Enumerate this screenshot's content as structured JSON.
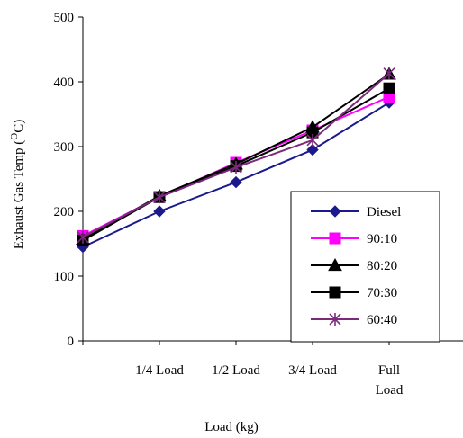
{
  "chart_data": {
    "type": "line",
    "title": "",
    "xlabel": "Load (kg)",
    "ylabel_main": "Exhaust Gas Temp (",
    "ylabel_sup": "O",
    "ylabel_end": "C)",
    "categories": [
      "",
      "1/4 Load",
      "1/2 Load",
      "3/4 Load",
      "Full Load"
    ],
    "ylim": [
      0,
      500
    ],
    "yticks": [
      0,
      100,
      200,
      300,
      400,
      500
    ],
    "grid": false,
    "legend_position": "bottom-right",
    "series": [
      {
        "name": "Diesel",
        "color": "#1a1a8c",
        "marker": "diamond",
        "values": [
          145,
          200,
          245,
          295,
          368
        ]
      },
      {
        "name": "90:10",
        "color": "#ff00ff",
        "marker": "square",
        "values": [
          162,
          222,
          275,
          325,
          377
        ]
      },
      {
        "name": "80:20",
        "color": "#000000",
        "marker": "triangle",
        "values": [
          157,
          224,
          273,
          330,
          412
        ]
      },
      {
        "name": "70:30",
        "color": "#000000",
        "marker": "square",
        "values": [
          155,
          222,
          270,
          322,
          390
        ]
      },
      {
        "name": "60:40",
        "color": "#7b2a7b",
        "marker": "star",
        "values": [
          160,
          222,
          268,
          310,
          413
        ]
      }
    ]
  }
}
